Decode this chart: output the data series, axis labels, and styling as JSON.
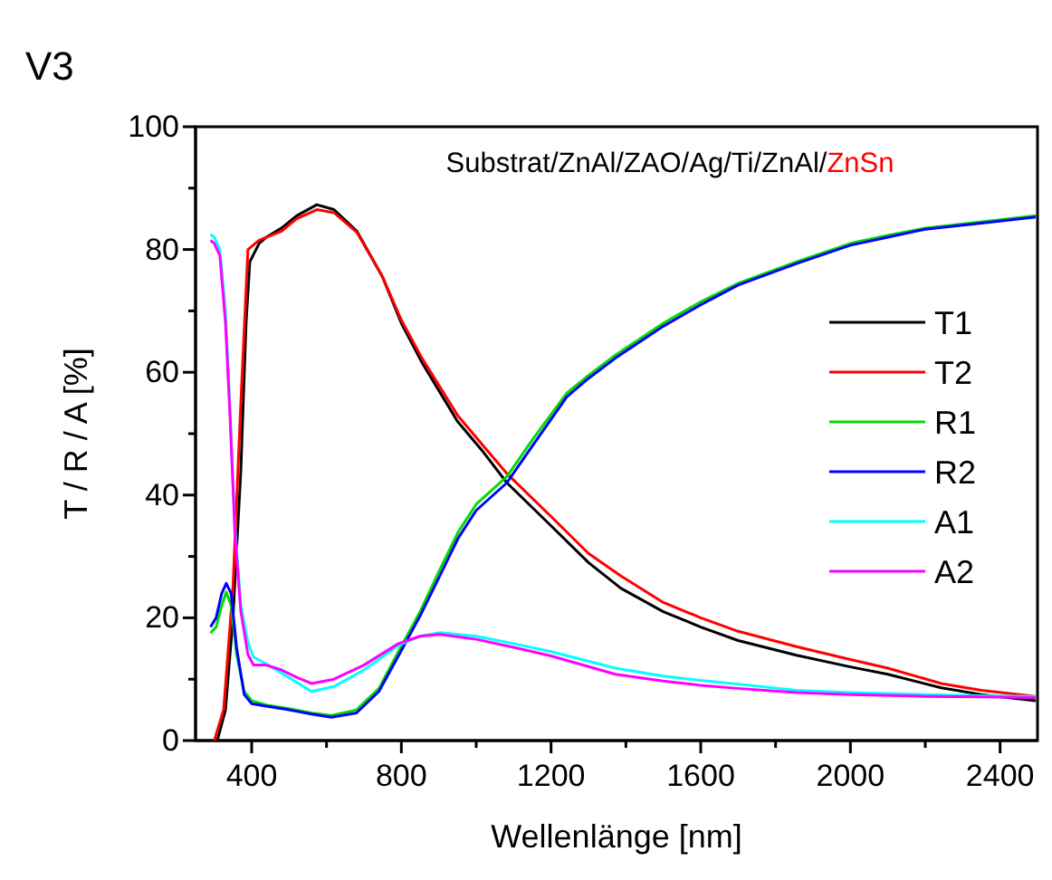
{
  "chart_data": {
    "type": "line",
    "title": "V3",
    "xlabel": "Wellenlänge [nm]",
    "ylabel": "T / R / A [%]",
    "annotations": [
      "Substrat/ZnAl/ZAO/Ag/Ti/ZnAl/",
      "ZnSn"
    ],
    "xlim": [
      250,
      2500
    ],
    "ylim": [
      0,
      100
    ],
    "xticks": [
      400,
      {
        "value": 600,
        "label": null
      },
      800,
      {
        "value": 1000,
        "label": null
      },
      1200,
      {
        "value": 1400,
        "label": null
      },
      1600,
      {
        "value": 1800,
        "label": null
      },
      2000,
      {
        "value": 2200,
        "label": null
      },
      2400
    ],
    "yticks": [
      0,
      {
        "value": 10,
        "label": null
      },
      20,
      {
        "value": 30,
        "label": null
      },
      40,
      {
        "value": 50,
        "label": null
      },
      60,
      {
        "value": 70,
        "label": null
      },
      80,
      {
        "value": 90,
        "label": null
      },
      100
    ],
    "grid": false,
    "legend": "right",
    "line_style": "solid",
    "marker": "none",
    "series": [
      {
        "name": "T1",
        "color": "#000000",
        "x": [
          308,
          330,
          350,
          371,
          385,
          395,
          420,
          439,
          480,
          520,
          574,
          620,
          681,
          750,
          800,
          855,
          950,
          1019,
          1082,
          1200,
          1300,
          1387,
          1500,
          1600,
          1700,
          1856,
          2000,
          2100,
          2243,
          2350,
          2495
        ],
        "values": [
          0,
          5,
          20,
          44,
          68,
          78,
          81,
          82,
          83.5,
          85.5,
          87.3,
          86.5,
          83,
          75.5,
          68,
          61.6,
          52,
          47,
          42,
          35,
          29,
          24.8,
          21,
          18.5,
          16.3,
          13.9,
          12,
          10.8,
          8.6,
          7.5,
          6.5
        ]
      },
      {
        "name": "T2",
        "color": "#ff0000",
        "x": [
          300,
          325,
          350,
          371,
          390,
          420,
          439,
          480,
          520,
          574,
          620,
          681,
          750,
          800,
          855,
          950,
          1019,
          1082,
          1200,
          1300,
          1387,
          1500,
          1600,
          1700,
          1856,
          2000,
          2100,
          2243,
          2350,
          2495
        ],
        "values": [
          0,
          5,
          25,
          55,
          80,
          81.5,
          82,
          83,
          85,
          86.5,
          86,
          82.8,
          75.5,
          68.5,
          62.3,
          53,
          48,
          43.5,
          36.5,
          30.5,
          26.8,
          22.5,
          20,
          17.8,
          15.3,
          13.2,
          11.8,
          9.3,
          8.2,
          7.2
        ]
      },
      {
        "name": "R1",
        "color": "#00dd00",
        "x": [
          290,
          305,
          320,
          332,
          345,
          360,
          380,
          400,
          439,
          500,
          560,
          613,
          680,
          740,
          792,
          850,
          900,
          952,
          1000,
          1082,
          1150,
          1242,
          1300,
          1372,
          1500,
          1600,
          1700,
          1856,
          2000,
          2100,
          2200,
          2350,
          2495
        ],
        "values": [
          17.5,
          18.5,
          22,
          24.2,
          22,
          14,
          8,
          6.5,
          5.8,
          5.2,
          4.5,
          4.1,
          5,
          8.5,
          14.5,
          21,
          27.5,
          34,
          38.5,
          43,
          49,
          56.6,
          59.5,
          62.8,
          68,
          71.5,
          74.5,
          78,
          81,
          82.3,
          83.5,
          84.5,
          85.5
        ]
      },
      {
        "name": "R2",
        "color": "#0000ff",
        "x": [
          290,
          305,
          320,
          332,
          345,
          360,
          380,
          400,
          439,
          500,
          560,
          613,
          680,
          740,
          792,
          850,
          900,
          952,
          1000,
          1082,
          1150,
          1242,
          1300,
          1372,
          1500,
          1600,
          1700,
          1856,
          2000,
          2100,
          2200,
          2350,
          2495
        ],
        "values": [
          18.5,
          20,
          24,
          25.6,
          24,
          15,
          7.5,
          6,
          5.6,
          5,
          4.3,
          3.8,
          4.5,
          8,
          13.8,
          20.3,
          26.5,
          33,
          37.5,
          42,
          48,
          56,
          59,
          62.3,
          67.5,
          71,
          74.2,
          77.7,
          80.7,
          82,
          83.3,
          84.3,
          85.3
        ]
      },
      {
        "name": "A1",
        "color": "#00ffff",
        "x": [
          290,
          300,
          315,
          330,
          342,
          355,
          371,
          390,
          405,
          439,
          480,
          520,
          560,
          620,
          700,
          792,
          850,
          903,
          1000,
          1100,
          1200,
          1372,
          1500,
          1600,
          1700,
          1856,
          2000,
          2200,
          2350,
          2495
        ],
        "values": [
          82.5,
          82,
          80,
          70,
          54,
          35,
          22,
          16,
          13.6,
          12.5,
          11,
          9.5,
          8,
          8.8,
          11.5,
          15.5,
          17,
          17.6,
          17,
          15.8,
          14.5,
          11.8,
          10.5,
          9.8,
          9.2,
          8.2,
          7.8,
          7.5,
          7.3,
          7.2
        ]
      },
      {
        "name": "A2",
        "color": "#ff00ff",
        "x": [
          290,
          300,
          315,
          330,
          342,
          355,
          371,
          390,
          405,
          439,
          480,
          520,
          560,
          620,
          700,
          792,
          850,
          903,
          1000,
          1100,
          1200,
          1372,
          1500,
          1600,
          1700,
          1856,
          2000,
          2200,
          2350,
          2495
        ],
        "values": [
          81.5,
          81,
          79,
          68,
          53,
          34,
          21,
          14,
          12.3,
          12.3,
          11.5,
          10.3,
          9.3,
          10,
          12.3,
          15.8,
          17,
          17.3,
          16.5,
          15.2,
          13.8,
          10.8,
          9.7,
          9,
          8.5,
          7.8,
          7.5,
          7.2,
          7.1,
          7.0
        ]
      }
    ]
  }
}
